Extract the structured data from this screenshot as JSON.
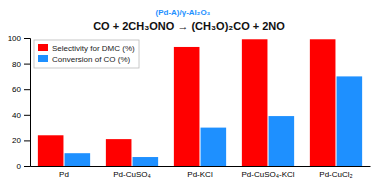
{
  "chart_data": {
    "type": "bar",
    "title": "CO + 2CH₃ONO → (CH₃O)₂CO + 2NO",
    "annotations": [
      {
        "text": "(Pd-A)/γ-Al₂O₃",
        "color": "#1E90FF"
      }
    ],
    "categories": [
      "Pd",
      "Pd-CuSO₄",
      "Pd-KCl",
      "Pd-CuSO₄-KCl",
      "Pd-CuCl₂"
    ],
    "series": [
      {
        "name": "Selectivity for DMC (%)",
        "color": "#FF0000",
        "values": [
          24,
          21,
          93,
          99,
          99
        ]
      },
      {
        "name": "Conversion of CO (%)",
        "color": "#1E90FF",
        "values": [
          10,
          7,
          30,
          39,
          70
        ]
      }
    ],
    "ylim": [
      0,
      100
    ],
    "yticks": [
      0,
      20,
      40,
      60,
      80,
      100
    ],
    "grid": false,
    "legend": "upper left"
  }
}
